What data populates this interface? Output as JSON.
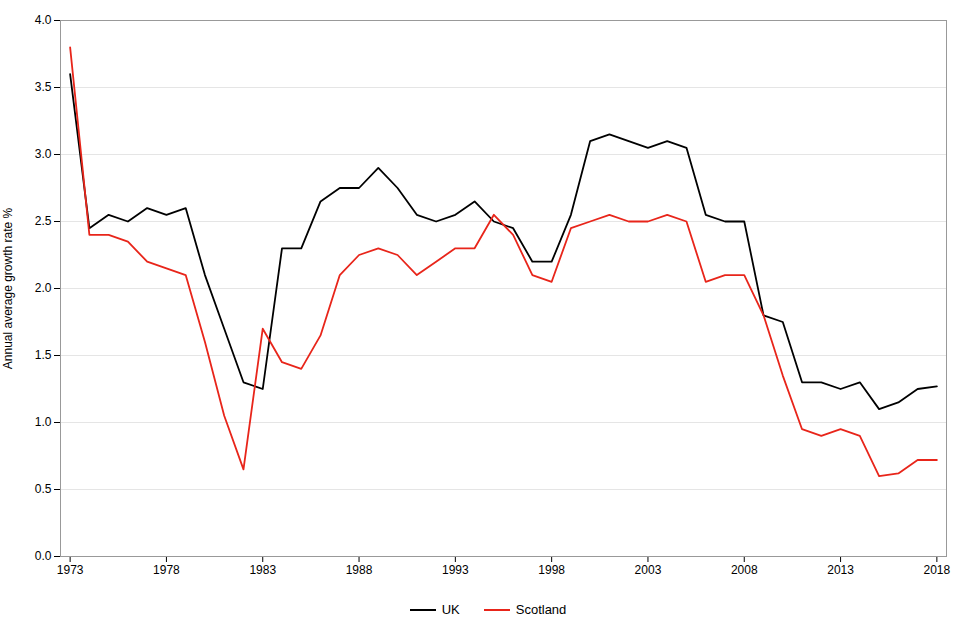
{
  "chart_data": {
    "type": "line",
    "ylabel": "Annual average growth rate %",
    "x": [
      1973,
      1974,
      1975,
      1976,
      1977,
      1978,
      1979,
      1980,
      1981,
      1982,
      1983,
      1984,
      1985,
      1986,
      1987,
      1988,
      1989,
      1990,
      1991,
      1992,
      1993,
      1994,
      1995,
      1996,
      1997,
      1998,
      1999,
      2000,
      2001,
      2002,
      2003,
      2004,
      2005,
      2006,
      2007,
      2008,
      2009,
      2010,
      2011,
      2012,
      2013,
      2014,
      2015,
      2016,
      2017,
      2018
    ],
    "series": [
      {
        "name": "UK",
        "color": "#000000",
        "values": [
          3.6,
          2.45,
          2.55,
          2.5,
          2.6,
          2.55,
          2.6,
          2.1,
          1.7,
          1.3,
          1.25,
          2.3,
          2.3,
          2.65,
          2.75,
          2.75,
          2.9,
          2.75,
          2.55,
          2.5,
          2.55,
          2.65,
          2.5,
          2.45,
          2.2,
          2.2,
          2.55,
          3.1,
          3.15,
          3.1,
          3.05,
          3.1,
          3.05,
          2.55,
          2.5,
          2.5,
          1.8,
          1.75,
          1.3,
          1.3,
          1.25,
          1.3,
          1.1,
          1.15,
          1.25,
          1.27
        ]
      },
      {
        "name": "Scotland",
        "color": "#e8251a",
        "values": [
          3.8,
          2.4,
          2.4,
          2.35,
          2.2,
          2.15,
          2.1,
          1.6,
          1.05,
          0.65,
          1.7,
          1.45,
          1.4,
          1.65,
          2.1,
          2.25,
          2.3,
          2.25,
          2.1,
          2.2,
          2.3,
          2.3,
          2.55,
          2.4,
          2.1,
          2.05,
          2.45,
          2.5,
          2.55,
          2.5,
          2.5,
          2.55,
          2.5,
          2.05,
          2.1,
          2.1,
          1.8,
          1.35,
          0.95,
          0.9,
          0.95,
          0.9,
          0.6,
          0.62,
          0.72,
          0.72
        ]
      }
    ],
    "xlim": [
      1972.5,
      2018.5
    ],
    "xticks": [
      1973,
      1978,
      1983,
      1988,
      1993,
      1998,
      2003,
      2008,
      2013,
      2018
    ],
    "ylim": [
      0.0,
      4.0
    ],
    "yticks": [
      {
        "value": 0.0,
        "label": "0.0"
      },
      0.5,
      {
        "value": 1.0,
        "label": "1.0"
      },
      1.5,
      {
        "value": 2.0,
        "label": "2.0"
      },
      2.5,
      {
        "value": 3.0,
        "label": "3.0"
      },
      3.5,
      {
        "value": 4.0,
        "label": "4.0"
      }
    ],
    "grid": true,
    "legend": "bottom"
  }
}
